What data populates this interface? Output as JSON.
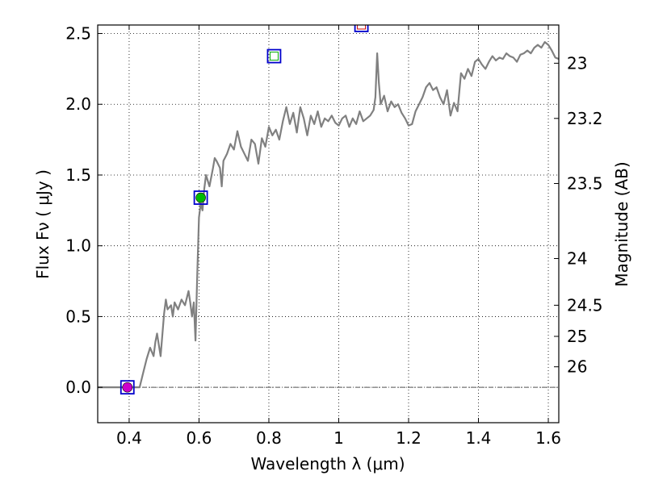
{
  "chart_data": {
    "type": "line",
    "xlabel": "Wavelength  λ (μm)",
    "ylabel": "Flux  Fν  ( μJy )",
    "y2label": "Magnitude (AB)",
    "xlim": [
      0.31,
      1.63
    ],
    "ylim": [
      -0.25,
      2.56
    ],
    "xticks": [
      0.4,
      0.6,
      0.8,
      1.0,
      1.2,
      1.4,
      1.6
    ],
    "xtick_labels": [
      "0.4",
      "0.6",
      "0.8",
      "1",
      "1.2",
      "1.4",
      "1.6"
    ],
    "yticks": [
      0.0,
      0.5,
      1.0,
      1.5,
      2.0,
      2.5
    ],
    "ytick_labels": [
      "0.0",
      "0.5",
      "1.0",
      "1.5",
      "2.0",
      "2.5"
    ],
    "y2ticks": [
      {
        "flux": 2.29,
        "label": "23"
      },
      {
        "flux": 1.9,
        "label": "23.2"
      },
      {
        "flux": 1.44,
        "label": "23.5"
      },
      {
        "flux": 0.91,
        "label": "24"
      },
      {
        "flux": 0.58,
        "label": "24.5"
      },
      {
        "flux": 0.36,
        "label": "25"
      },
      {
        "flux": 0.145,
        "label": "26"
      }
    ],
    "grid": true,
    "reference_line": {
      "y": 0.0,
      "style": "dash-dot"
    },
    "series": [
      {
        "color": "#808080",
        "x": [
          0.31,
          0.42,
          0.43,
          0.44,
          0.45,
          0.46,
          0.47,
          0.475,
          0.48,
          0.49,
          0.5,
          0.505,
          0.51,
          0.52,
          0.525,
          0.53,
          0.54,
          0.55,
          0.56,
          0.57,
          0.575,
          0.58,
          0.585,
          0.59,
          0.595,
          0.6,
          0.605,
          0.61,
          0.615,
          0.62,
          0.63,
          0.64,
          0.645,
          0.65,
          0.66,
          0.665,
          0.67,
          0.68,
          0.69,
          0.7,
          0.71,
          0.72,
          0.73,
          0.74,
          0.75,
          0.76,
          0.77,
          0.78,
          0.79,
          0.8,
          0.81,
          0.82,
          0.83,
          0.84,
          0.85,
          0.86,
          0.87,
          0.88,
          0.89,
          0.9,
          0.91,
          0.92,
          0.93,
          0.94,
          0.95,
          0.96,
          0.97,
          0.98,
          0.99,
          1.0,
          1.01,
          1.02,
          1.03,
          1.04,
          1.05,
          1.06,
          1.07,
          1.08,
          1.09,
          1.1,
          1.105,
          1.11,
          1.115,
          1.12,
          1.13,
          1.14,
          1.15,
          1.16,
          1.17,
          1.18,
          1.19,
          1.2,
          1.21,
          1.22,
          1.23,
          1.24,
          1.25,
          1.26,
          1.27,
          1.28,
          1.29,
          1.3,
          1.31,
          1.32,
          1.33,
          1.34,
          1.35,
          1.36,
          1.37,
          1.38,
          1.39,
          1.4,
          1.41,
          1.42,
          1.43,
          1.44,
          1.45,
          1.46,
          1.47,
          1.48,
          1.49,
          1.5,
          1.51,
          1.52,
          1.53,
          1.54,
          1.55,
          1.56,
          1.57,
          1.58,
          1.59,
          1.6,
          1.61,
          1.62,
          1.63
        ],
        "y": [
          0.0,
          0.0,
          0.0,
          0.1,
          0.2,
          0.28,
          0.22,
          0.32,
          0.38,
          0.22,
          0.52,
          0.62,
          0.55,
          0.58,
          0.5,
          0.6,
          0.55,
          0.62,
          0.58,
          0.68,
          0.6,
          0.5,
          0.6,
          0.33,
          0.8,
          1.2,
          1.3,
          1.25,
          1.4,
          1.5,
          1.42,
          1.55,
          1.62,
          1.6,
          1.55,
          1.42,
          1.6,
          1.65,
          1.72,
          1.68,
          1.81,
          1.7,
          1.65,
          1.6,
          1.75,
          1.72,
          1.58,
          1.76,
          1.7,
          1.84,
          1.78,
          1.82,
          1.75,
          1.88,
          1.98,
          1.86,
          1.94,
          1.8,
          1.98,
          1.9,
          1.78,
          1.92,
          1.86,
          1.95,
          1.84,
          1.9,
          1.88,
          1.92,
          1.87,
          1.85,
          1.9,
          1.92,
          1.84,
          1.9,
          1.86,
          1.95,
          1.88,
          1.9,
          1.92,
          1.96,
          2.05,
          2.36,
          2.15,
          2.0,
          2.06,
          1.95,
          2.02,
          1.98,
          2.0,
          1.94,
          1.9,
          1.85,
          1.86,
          1.95,
          2.0,
          2.05,
          2.12,
          2.15,
          2.1,
          2.12,
          2.05,
          2.0,
          2.1,
          1.92,
          2.01,
          1.95,
          2.22,
          2.18,
          2.25,
          2.2,
          2.3,
          2.32,
          2.28,
          2.25,
          2.3,
          2.34,
          2.31,
          2.33,
          2.32,
          2.36,
          2.34,
          2.33,
          2.3,
          2.35,
          2.36,
          2.38,
          2.36,
          2.4,
          2.42,
          2.4,
          2.44,
          2.42,
          2.38,
          2.33,
          2.32
        ]
      }
    ],
    "markers": [
      {
        "x": 0.395,
        "y": 0.0,
        "fill": "#cc00cc",
        "box": "#0000cc"
      },
      {
        "x": 0.605,
        "y": 1.34,
        "fill": "#00bb00",
        "box": "#0000cc"
      },
      {
        "x": 0.815,
        "y": 2.34,
        "fill": "#ffffff",
        "inner": "#00aa00",
        "box": "#0000cc"
      },
      {
        "x": 1.065,
        "y": 2.56,
        "fill": "#ffffff",
        "inner": "#cc0000",
        "box": "#0000cc"
      }
    ]
  }
}
